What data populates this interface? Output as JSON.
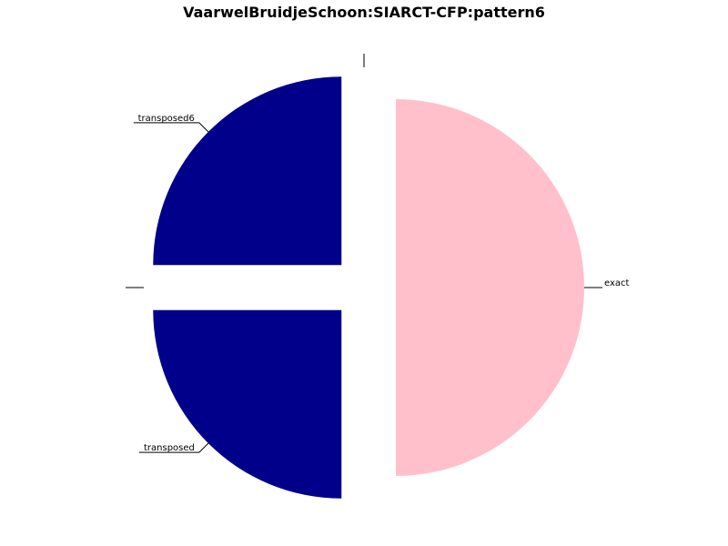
{
  "chart_data": {
    "type": "pie",
    "title": "VaarwelBruidjeSchoon:SIARCT-CFP:pattern6",
    "slices": [
      {
        "label": "exact",
        "value": 50,
        "color": "#FFC0CB"
      },
      {
        "label": "transposed",
        "value": 25,
        "color": "#00008B"
      },
      {
        "label": "",
        "value": 0,
        "color": "#FFFFFF"
      },
      {
        "label": "transposed6",
        "value": 25,
        "color": "#00008B"
      },
      {
        "label": "",
        "value": 0,
        "color": "#FFFFFF"
      }
    ],
    "exploded": true,
    "start_angle_deg": -90,
    "direction": "clockwise",
    "legend": "none"
  }
}
